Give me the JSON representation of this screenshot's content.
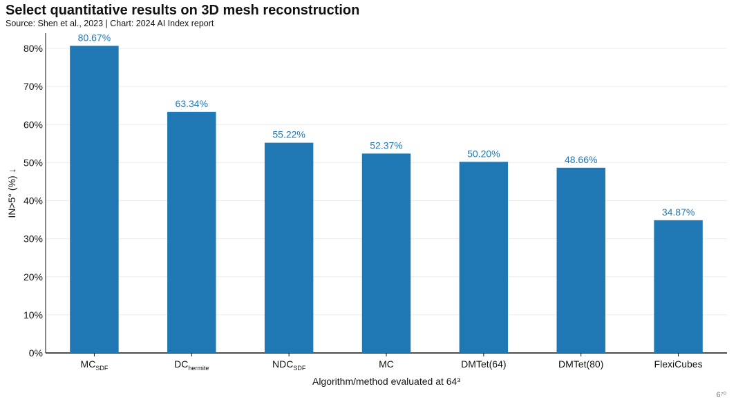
{
  "header": {
    "title": "Select quantitative results on 3D mesh reconstruction",
    "subtitle": "Source: Shen et al., 2023 | Chart: 2024 AI Index report"
  },
  "chart_data": {
    "type": "bar",
    "categories": [
      {
        "base": "MC",
        "sub": "SDF"
      },
      {
        "base": "DC",
        "sub": "hermite"
      },
      {
        "base": "NDC",
        "sub": "SDF"
      },
      {
        "base": "MC",
        "sub": ""
      },
      {
        "base": "DMTet(64)",
        "sub": ""
      },
      {
        "base": "DMTet(80)",
        "sub": ""
      },
      {
        "base": "FlexiCubes",
        "sub": ""
      }
    ],
    "values": [
      80.67,
      63.34,
      55.22,
      52.37,
      50.2,
      48.66,
      34.87
    ],
    "value_labels": [
      "80.67%",
      "63.34%",
      "55.22%",
      "52.37%",
      "50.20%",
      "48.66%",
      "34.87%"
    ],
    "xlabel": "Algorithm/method evaluated at 64³",
    "ylabel": "IN>5° (%) ↓",
    "ylim": [
      0,
      84
    ],
    "yticks": [
      0,
      10,
      20,
      30,
      40,
      50,
      60,
      70,
      80
    ],
    "ytick_labels": [
      "0%",
      "10%",
      "20%",
      "30%",
      "40%",
      "50%",
      "60%",
      "70%",
      "80%"
    ],
    "bar_color": "#1f77b4",
    "grid": true
  },
  "watermark": "6⁷⁰"
}
